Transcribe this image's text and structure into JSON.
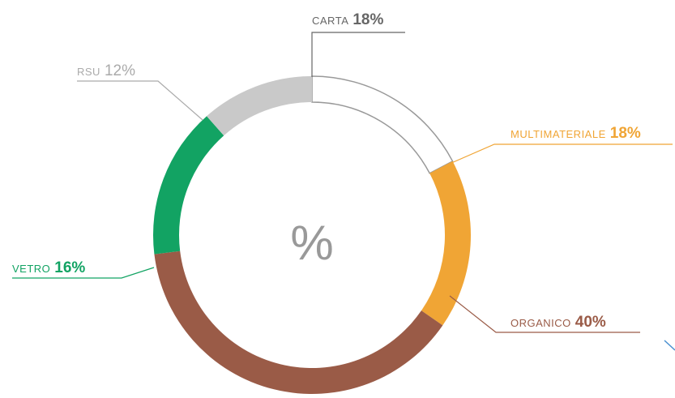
{
  "chart_data": {
    "type": "donut",
    "center_label": "%",
    "categories": [
      "CARTA",
      "MULTIMATERIALE",
      "ORGANICO",
      "VETRO",
      "RSU"
    ],
    "values": [
      18,
      18,
      40,
      16,
      12
    ],
    "value_labels": [
      "18%",
      "18%",
      "40%",
      "16%",
      "12%"
    ],
    "colors": [
      "#ffffff",
      "#f0a535",
      "#9a5b47",
      "#12a363",
      "#c9c9c9"
    ],
    "label_colors": [
      "#666666",
      "#f0a535",
      "#9a5b47",
      "#12a363",
      "#aaaaaa"
    ]
  }
}
